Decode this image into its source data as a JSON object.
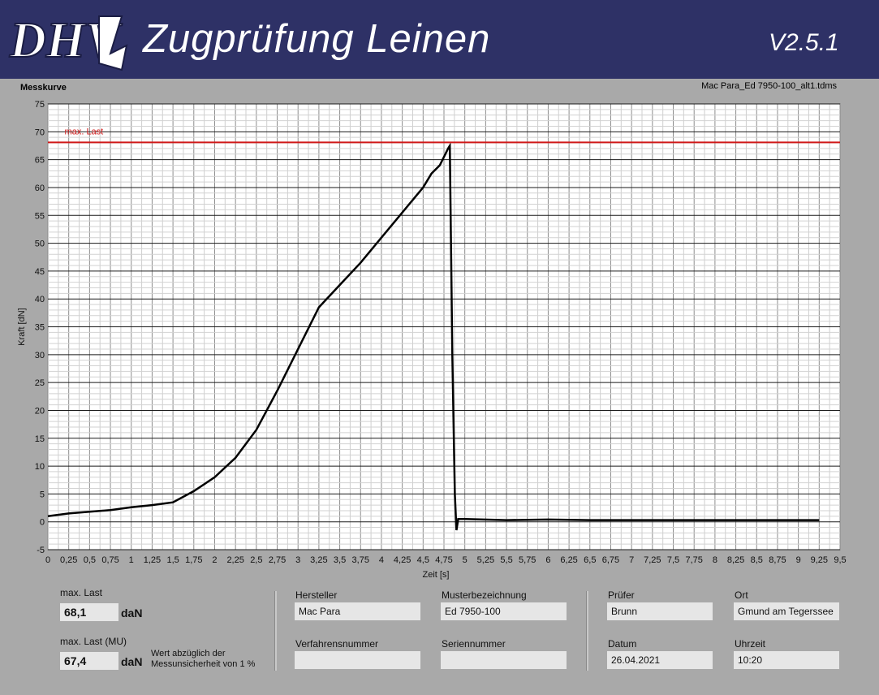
{
  "header": {
    "logo_text": "DHV",
    "title": "Zugprüfung Leinen",
    "version": "V2.5.1"
  },
  "plot": {
    "label": "Messkurve",
    "file": "Mac Para_Ed 7950-100_alt1.tdms"
  },
  "chart_data": {
    "type": "line",
    "xlabel": "Zeit [s]",
    "ylabel": "Kraft [dN]",
    "xlim": [
      0,
      9.5
    ],
    "ylim": [
      -5,
      75
    ],
    "x_ticks": [
      "0",
      "0,25",
      "0,5",
      "0,75",
      "1",
      "1,25",
      "1,5",
      "1,75",
      "2",
      "2,25",
      "2,5",
      "2,75",
      "3",
      "3,25",
      "3,5",
      "3,75",
      "4",
      "4,25",
      "4,5",
      "4,75",
      "5",
      "5,25",
      "5,5",
      "5,75",
      "6",
      "6,25",
      "6,5",
      "6,75",
      "7",
      "7,25",
      "7,5",
      "7,75",
      "8",
      "8,25",
      "8,5",
      "8,75",
      "9",
      "9,25",
      "9,5"
    ],
    "y_ticks": [
      "75",
      "70",
      "65",
      "60",
      "55",
      "50",
      "45",
      "40",
      "35",
      "30",
      "25",
      "20",
      "15",
      "10",
      "5",
      "0",
      "-5"
    ],
    "grid": true,
    "series": [
      {
        "name": "",
        "color": "#000000",
        "x": [
          0,
          0.25,
          0.5,
          0.75,
          1.0,
          1.25,
          1.5,
          1.75,
          2.0,
          2.25,
          2.5,
          2.75,
          3.0,
          3.25,
          3.5,
          3.75,
          4.0,
          4.25,
          4.5,
          4.6,
          4.7,
          4.8,
          4.82,
          4.85,
          4.88,
          4.9,
          4.92,
          5.0,
          5.5,
          6.0,
          6.5,
          7.0,
          7.5,
          8.0,
          8.5,
          9.0,
          9.25
        ],
        "y": [
          1.0,
          1.5,
          1.8,
          2.1,
          2.6,
          3.0,
          3.5,
          5.5,
          8.0,
          11.5,
          16.5,
          23.5,
          31.0,
          38.5,
          42.5,
          46.5,
          51.0,
          55.5,
          60.0,
          62.5,
          64.0,
          67.0,
          67.5,
          30.0,
          5.0,
          -1.5,
          0.5,
          0.5,
          0.3,
          0.4,
          0.3,
          0.3,
          0.3,
          0.3,
          0.3,
          0.3,
          0.3
        ]
      },
      {
        "name": "max. Last",
        "color": "#d01818",
        "x": [
          0,
          9.5
        ],
        "y": [
          68.1,
          68.1
        ]
      }
    ]
  },
  "results": {
    "max_last_label": "max. Last",
    "max_last_value": "68,1",
    "max_last_unit": "daN",
    "max_last_mu_label": "max. Last (MU)",
    "max_last_mu_value": "67,4",
    "max_last_mu_unit": "daN",
    "mu_note_line1": "Wert abzüglich der",
    "mu_note_line2": "Messunsicherheit von 1 %"
  },
  "fields": {
    "hersteller_label": "Hersteller",
    "hersteller_value": "Mac Para",
    "musterbezeichnung_label": "Musterbezeichnung",
    "musterbezeichnung_value": "Ed 7950-100",
    "verfahrensnummer_label": "Verfahrensnummer",
    "verfahrensnummer_value": "",
    "seriennummer_label": "Seriennummer",
    "seriennummer_value": "",
    "pruefer_label": "Prüfer",
    "pruefer_value": "Brunn",
    "ort_label": "Ort",
    "ort_value": "Gmund am Tegerssee",
    "datum_label": "Datum",
    "datum_value": "26.04.2021",
    "uhrzeit_label": "Uhrzeit",
    "uhrzeit_value": "10:20"
  }
}
